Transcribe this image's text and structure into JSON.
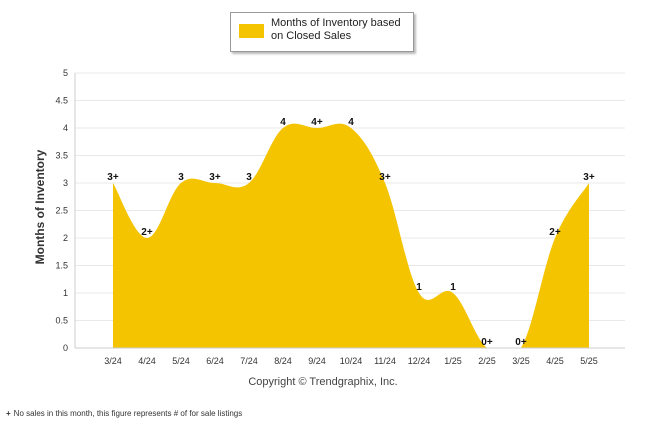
{
  "chart_data": {
    "type": "area",
    "categories": [
      "3/24",
      "4/24",
      "5/24",
      "6/24",
      "7/24",
      "8/24",
      "9/24",
      "10/24",
      "11/24",
      "12/24",
      "1/25",
      "2/25",
      "3/25",
      "4/25",
      "5/25"
    ],
    "series": [
      {
        "name": "Months of Inventory based on Closed Sales",
        "values": [
          3,
          2,
          3,
          3,
          3,
          4,
          4,
          4,
          3,
          1,
          1,
          0,
          0,
          2,
          3
        ],
        "labels": [
          "3+",
          "2+",
          "3",
          "3+",
          "3",
          "4",
          "4+",
          "4",
          "3+",
          "1",
          "1",
          "0+",
          "0+",
          "2+",
          "3+"
        ],
        "color": "#F5C400"
      }
    ],
    "ylabel": "Months of Inventory",
    "ylim": [
      0,
      5
    ],
    "yticks": [
      "0",
      "0.5",
      "1",
      "1.5",
      "2",
      "2.5",
      "3",
      "3.5",
      "4",
      "4.5",
      "5"
    ],
    "grid": true,
    "legend_position": "top-center"
  },
  "copyright": "Copyright © Trendgraphix, Inc.",
  "footnote": {
    "marker": "+",
    "text": "No sales in this month, this figure represents # of for sale listings"
  }
}
